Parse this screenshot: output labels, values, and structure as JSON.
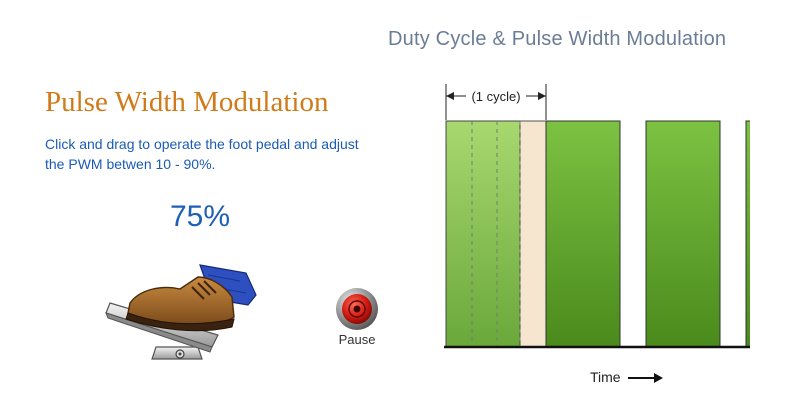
{
  "page_title": "Duty Cycle & Pulse Width Modulation",
  "heading": "Pulse Width Modulation",
  "instructions": "Click and drag to operate the foot pedal and adjust the PWM betwen 10 - 90%.",
  "duty_cycle": {
    "display": "75%",
    "value": 0.75
  },
  "pause_button": {
    "label": "Pause",
    "icon": "red-record-button-icon"
  },
  "chart": {
    "cycle_label": "(1 cycle)",
    "time_label": "Time",
    "pulse_color": "#5ea22c",
    "off_highlight_color": "#f6e6d0"
  },
  "chart_data": {
    "type": "area",
    "description": "PWM waveform, on/off pulses over time",
    "duty_cycle": 0.75,
    "cycles_visible": 3,
    "xlabel": "Time"
  },
  "colors": {
    "title": "#6b7d95",
    "heading": "#d07a1a",
    "instructions": "#1b5bb5",
    "percent": "#1f5fb5"
  }
}
